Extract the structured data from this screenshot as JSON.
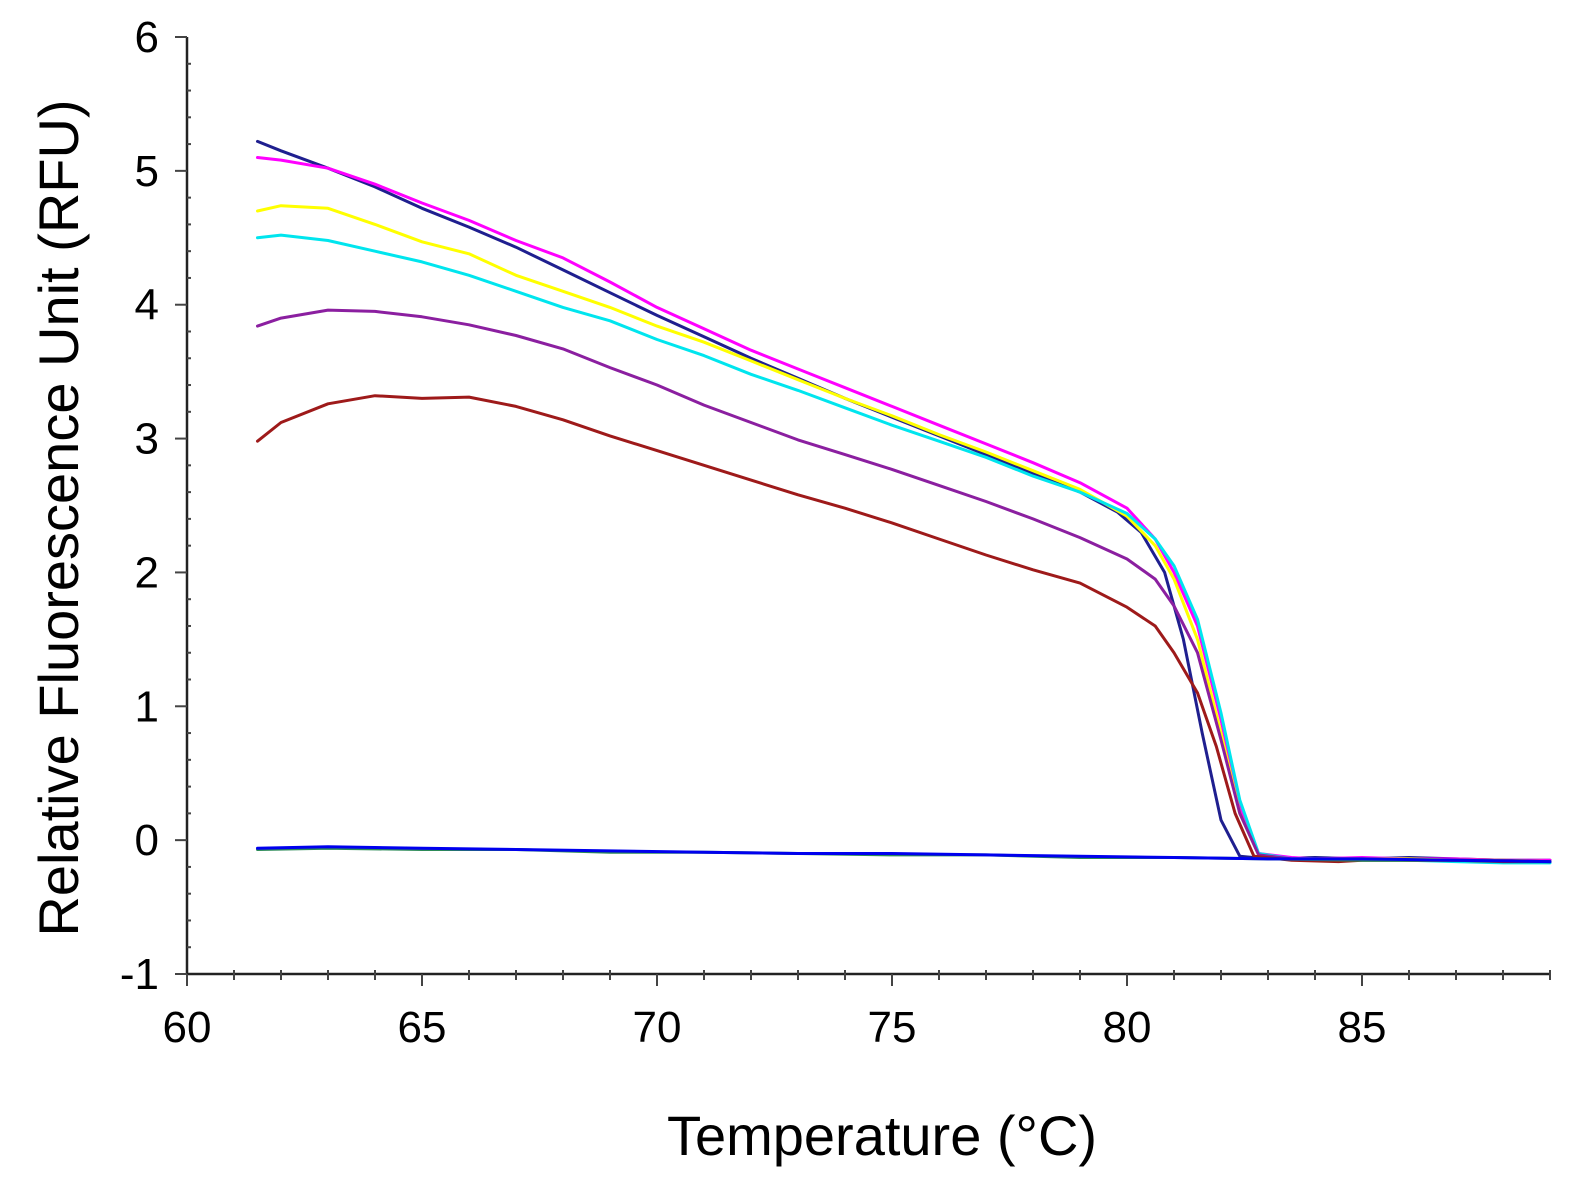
{
  "chart_data": {
    "type": "line",
    "title": "",
    "xlabel": "Temperature (°C)",
    "ylabel": "Relative Fluorescence Unit (RFU)",
    "xlim": [
      60,
      89
    ],
    "ylim": [
      -1,
      6
    ],
    "xticks": [
      60,
      65,
      70,
      75,
      80,
      85
    ],
    "yticks": [
      -1,
      0,
      1,
      2,
      3,
      4,
      5,
      6
    ],
    "grid": false,
    "legend": "none",
    "series": [
      {
        "color": "#1f1f8f",
        "points": [
          [
            61.5,
            5.22
          ],
          [
            62,
            5.15
          ],
          [
            63,
            5.02
          ],
          [
            64,
            4.88
          ],
          [
            65,
            4.72
          ],
          [
            66,
            4.58
          ],
          [
            67,
            4.43
          ],
          [
            68,
            4.26
          ],
          [
            69,
            4.09
          ],
          [
            70,
            3.92
          ],
          [
            71,
            3.76
          ],
          [
            72,
            3.6
          ],
          [
            73,
            3.45
          ],
          [
            74,
            3.3
          ],
          [
            75,
            3.16
          ],
          [
            76,
            3.02
          ],
          [
            77,
            2.88
          ],
          [
            78,
            2.74
          ],
          [
            79,
            2.6
          ],
          [
            79.8,
            2.45
          ],
          [
            80.3,
            2.3
          ],
          [
            80.8,
            2.0
          ],
          [
            81.2,
            1.5
          ],
          [
            81.6,
            0.8
          ],
          [
            82,
            0.15
          ],
          [
            82.4,
            -0.12
          ],
          [
            83,
            -0.14
          ],
          [
            84,
            -0.13
          ],
          [
            85,
            -0.14
          ],
          [
            86,
            -0.13
          ],
          [
            87,
            -0.14
          ],
          [
            88,
            -0.15
          ],
          [
            89,
            -0.15
          ]
        ]
      },
      {
        "color": "#ff00ff",
        "points": [
          [
            61.5,
            5.1
          ],
          [
            62,
            5.08
          ],
          [
            63,
            5.02
          ],
          [
            64,
            4.9
          ],
          [
            65,
            4.76
          ],
          [
            66,
            4.63
          ],
          [
            67,
            4.48
          ],
          [
            68,
            4.35
          ],
          [
            69,
            4.17
          ],
          [
            70,
            3.98
          ],
          [
            71,
            3.82
          ],
          [
            72,
            3.66
          ],
          [
            73,
            3.52
          ],
          [
            74,
            3.38
          ],
          [
            75,
            3.24
          ],
          [
            76,
            3.1
          ],
          [
            77,
            2.96
          ],
          [
            78,
            2.82
          ],
          [
            79,
            2.67
          ],
          [
            80,
            2.48
          ],
          [
            80.6,
            2.25
          ],
          [
            81,
            2.0
          ],
          [
            81.5,
            1.6
          ],
          [
            82,
            0.9
          ],
          [
            82.4,
            0.25
          ],
          [
            82.8,
            -0.1
          ],
          [
            83.5,
            -0.13
          ],
          [
            84,
            -0.14
          ],
          [
            85,
            -0.13
          ],
          [
            86,
            -0.14
          ],
          [
            87,
            -0.14
          ],
          [
            88,
            -0.15
          ],
          [
            89,
            -0.15
          ]
        ]
      },
      {
        "color": "#ffff00",
        "points": [
          [
            61.5,
            4.7
          ],
          [
            62,
            4.74
          ],
          [
            63,
            4.72
          ],
          [
            64,
            4.6
          ],
          [
            65,
            4.47
          ],
          [
            66,
            4.38
          ],
          [
            67,
            4.22
          ],
          [
            68,
            4.1
          ],
          [
            69,
            3.98
          ],
          [
            70,
            3.84
          ],
          [
            71,
            3.72
          ],
          [
            72,
            3.58
          ],
          [
            73,
            3.44
          ],
          [
            74,
            3.3
          ],
          [
            75,
            3.17
          ],
          [
            76,
            3.03
          ],
          [
            77,
            2.9
          ],
          [
            78,
            2.76
          ],
          [
            79,
            2.62
          ],
          [
            80,
            2.42
          ],
          [
            80.6,
            2.2
          ],
          [
            81,
            1.95
          ],
          [
            81.5,
            1.5
          ],
          [
            82,
            0.8
          ],
          [
            82.4,
            0.2
          ],
          [
            82.8,
            -0.11
          ],
          [
            83.5,
            -0.14
          ],
          [
            84,
            -0.14
          ],
          [
            85,
            -0.14
          ],
          [
            86,
            -0.14
          ],
          [
            87,
            -0.15
          ],
          [
            88,
            -0.15
          ],
          [
            89,
            -0.16
          ]
        ]
      },
      {
        "color": "#00e5ee",
        "points": [
          [
            61.5,
            4.5
          ],
          [
            62,
            4.52
          ],
          [
            63,
            4.48
          ],
          [
            64,
            4.4
          ],
          [
            65,
            4.32
          ],
          [
            66,
            4.22
          ],
          [
            67,
            4.1
          ],
          [
            68,
            3.98
          ],
          [
            69,
            3.88
          ],
          [
            70,
            3.74
          ],
          [
            71,
            3.62
          ],
          [
            72,
            3.48
          ],
          [
            73,
            3.36
          ],
          [
            74,
            3.23
          ],
          [
            75,
            3.1
          ],
          [
            76,
            2.98
          ],
          [
            77,
            2.86
          ],
          [
            78,
            2.72
          ],
          [
            79,
            2.6
          ],
          [
            80,
            2.44
          ],
          [
            80.6,
            2.25
          ],
          [
            81,
            2.05
          ],
          [
            81.5,
            1.65
          ],
          [
            82,
            0.95
          ],
          [
            82.4,
            0.3
          ],
          [
            82.8,
            -0.1
          ],
          [
            83.5,
            -0.14
          ],
          [
            84,
            -0.14
          ],
          [
            85,
            -0.15
          ],
          [
            86,
            -0.15
          ],
          [
            87,
            -0.16
          ],
          [
            88,
            -0.17
          ],
          [
            89,
            -0.17
          ]
        ]
      },
      {
        "color": "#8b1fa0",
        "points": [
          [
            61.5,
            3.84
          ],
          [
            62,
            3.9
          ],
          [
            63,
            3.96
          ],
          [
            64,
            3.95
          ],
          [
            65,
            3.91
          ],
          [
            66,
            3.85
          ],
          [
            67,
            3.77
          ],
          [
            68,
            3.67
          ],
          [
            69,
            3.53
          ],
          [
            70,
            3.4
          ],
          [
            71,
            3.25
          ],
          [
            72,
            3.12
          ],
          [
            73,
            2.99
          ],
          [
            74,
            2.88
          ],
          [
            75,
            2.77
          ],
          [
            76,
            2.65
          ],
          [
            77,
            2.53
          ],
          [
            78,
            2.4
          ],
          [
            79,
            2.26
          ],
          [
            80,
            2.1
          ],
          [
            80.6,
            1.95
          ],
          [
            81,
            1.75
          ],
          [
            81.5,
            1.4
          ],
          [
            82,
            0.75
          ],
          [
            82.4,
            0.2
          ],
          [
            82.8,
            -0.11
          ],
          [
            83.5,
            -0.14
          ],
          [
            84,
            -0.14
          ],
          [
            85,
            -0.14
          ],
          [
            86,
            -0.15
          ],
          [
            87,
            -0.15
          ],
          [
            88,
            -0.15
          ],
          [
            89,
            -0.16
          ]
        ]
      },
      {
        "color": "#9e1a1a",
        "points": [
          [
            61.5,
            2.98
          ],
          [
            62,
            3.12
          ],
          [
            63,
            3.26
          ],
          [
            64,
            3.32
          ],
          [
            65,
            3.3
          ],
          [
            66,
            3.31
          ],
          [
            67,
            3.24
          ],
          [
            68,
            3.14
          ],
          [
            69,
            3.02
          ],
          [
            70,
            2.91
          ],
          [
            71,
            2.8
          ],
          [
            72,
            2.69
          ],
          [
            73,
            2.58
          ],
          [
            74,
            2.48
          ],
          [
            75,
            2.37
          ],
          [
            76,
            2.25
          ],
          [
            77,
            2.13
          ],
          [
            78,
            2.02
          ],
          [
            79,
            1.92
          ],
          [
            80,
            1.74
          ],
          [
            80.6,
            1.6
          ],
          [
            81,
            1.4
          ],
          [
            81.5,
            1.1
          ],
          [
            81.9,
            0.7
          ],
          [
            82.3,
            0.2
          ],
          [
            82.7,
            -0.12
          ],
          [
            83.5,
            -0.15
          ],
          [
            84.5,
            -0.16
          ],
          [
            85,
            -0.15
          ],
          [
            86,
            -0.15
          ],
          [
            87,
            -0.15
          ],
          [
            88,
            -0.16
          ],
          [
            89,
            -0.16
          ]
        ]
      },
      {
        "color": "#2d8b57",
        "points": [
          [
            61.5,
            -0.07
          ],
          [
            63,
            -0.06
          ],
          [
            65,
            -0.07
          ],
          [
            67,
            -0.07
          ],
          [
            69,
            -0.09
          ],
          [
            71,
            -0.09
          ],
          [
            73,
            -0.1
          ],
          [
            75,
            -0.11
          ],
          [
            77,
            -0.11
          ],
          [
            79,
            -0.13
          ],
          [
            81,
            -0.13
          ],
          [
            83,
            -0.14
          ],
          [
            85,
            -0.15
          ],
          [
            87,
            -0.15
          ],
          [
            89,
            -0.16
          ]
        ]
      },
      {
        "color": "#0000ee",
        "points": [
          [
            61.5,
            -0.06
          ],
          [
            63,
            -0.05
          ],
          [
            65,
            -0.06
          ],
          [
            67,
            -0.07
          ],
          [
            69,
            -0.08
          ],
          [
            71,
            -0.09
          ],
          [
            73,
            -0.1
          ],
          [
            75,
            -0.1
          ],
          [
            77,
            -0.11
          ],
          [
            79,
            -0.12
          ],
          [
            81,
            -0.13
          ],
          [
            83,
            -0.14
          ],
          [
            85,
            -0.14
          ],
          [
            87,
            -0.15
          ],
          [
            89,
            -0.16
          ]
        ]
      }
    ]
  }
}
